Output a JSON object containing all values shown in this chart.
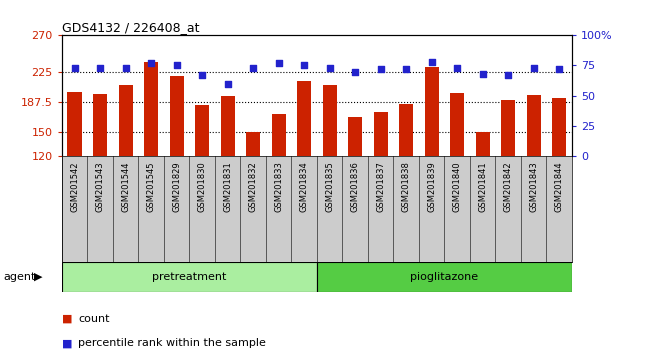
{
  "title": "GDS4132 / 226408_at",
  "samples": [
    "GSM201542",
    "GSM201543",
    "GSM201544",
    "GSM201545",
    "GSM201829",
    "GSM201830",
    "GSM201831",
    "GSM201832",
    "GSM201833",
    "GSM201834",
    "GSM201835",
    "GSM201836",
    "GSM201837",
    "GSM201838",
    "GSM201839",
    "GSM201840",
    "GSM201841",
    "GSM201842",
    "GSM201843",
    "GSM201844"
  ],
  "counts": [
    200,
    197,
    208,
    237,
    220,
    183,
    195,
    150,
    172,
    213,
    208,
    168,
    174,
    185,
    231,
    198,
    150,
    190,
    196,
    192
  ],
  "percentiles": [
    73,
    73,
    73,
    77,
    75,
    67,
    60,
    73,
    77,
    75,
    73,
    70,
    72,
    72,
    78,
    73,
    68,
    67,
    73,
    72
  ],
  "pretreatment_count": 10,
  "pioglitazone_count": 10,
  "y_min": 120,
  "y_max": 270,
  "y_ticks": [
    120,
    150,
    187.5,
    225,
    270
  ],
  "y_tick_labels": [
    "120",
    "150",
    "187.5",
    "225",
    "270"
  ],
  "y2_ticks": [
    0,
    25,
    50,
    75,
    100
  ],
  "y2_tick_labels": [
    "0",
    "25",
    "50",
    "75",
    "100%"
  ],
  "bar_color": "#cc2200",
  "dot_color": "#2222cc",
  "bg_color": "#ffffff",
  "plot_bg": "#ffffff",
  "label_bg": "#cccccc",
  "pretreatment_color": "#aaeea0",
  "pioglitazone_color": "#55cc44",
  "agent_label": "agent",
  "legend_count_label": "count",
  "legend_pct_label": "percentile rank within the sample"
}
